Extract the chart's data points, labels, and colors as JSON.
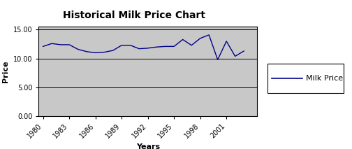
{
  "title": "Historical Milk Price Chart",
  "xlabel": "Years",
  "ylabel": "Price",
  "legend_label": "Milk Price",
  "years": [
    1980,
    1981,
    1982,
    1983,
    1984,
    1985,
    1986,
    1987,
    1988,
    1989,
    1990,
    1991,
    1992,
    1993,
    1994,
    1995,
    1996,
    1997,
    1998,
    1999,
    2000,
    2001,
    2002,
    2003
  ],
  "prices": [
    12.1,
    12.6,
    12.4,
    12.4,
    11.6,
    11.2,
    11.0,
    11.1,
    11.4,
    12.3,
    12.3,
    11.7,
    11.8,
    12.0,
    12.1,
    12.1,
    13.3,
    12.3,
    13.5,
    14.1,
    9.8,
    13.0,
    10.4,
    11.3
  ],
  "xticks": [
    1980,
    1983,
    1986,
    1989,
    1992,
    1995,
    1998,
    2001
  ],
  "yticks": [
    0.0,
    5.0,
    10.0,
    15.0
  ],
  "ytick_labels": [
    "0.00",
    "5.00",
    "10.00",
    "15.00"
  ],
  "ylim": [
    0,
    15.5
  ],
  "xlim": [
    1979.5,
    2004.5
  ],
  "line_color": "#00008B",
  "plot_bg_color": "#C8C8C8",
  "fig_bg_color": "#FFFFFF",
  "border_color": "#000000",
  "grid_color": "#000000",
  "title_fontsize": 10,
  "axis_label_fontsize": 8,
  "tick_fontsize": 7,
  "legend_fontsize": 8
}
